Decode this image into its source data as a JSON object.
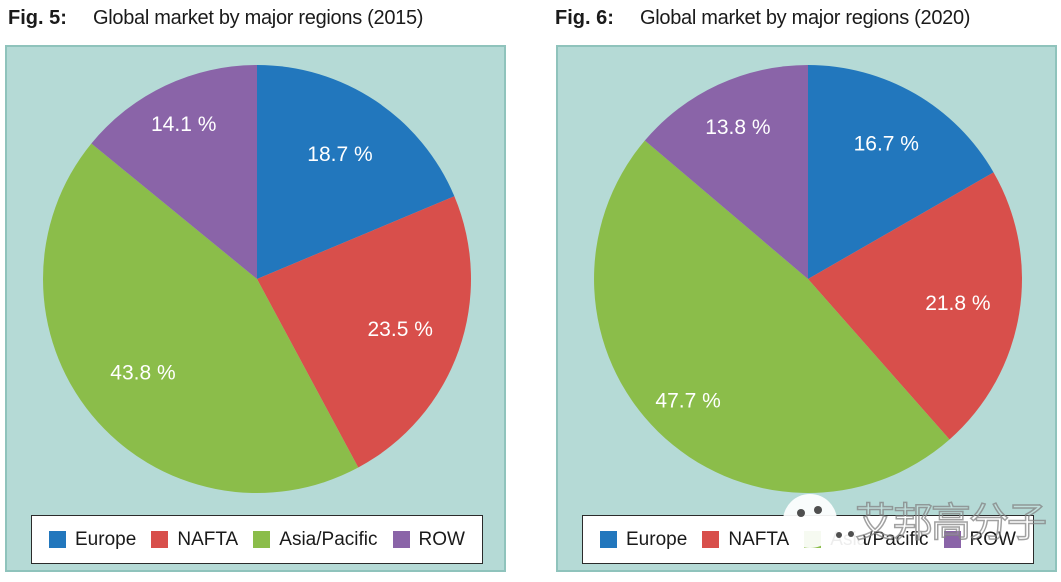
{
  "colors": {
    "panel_bg": "#b5dad6",
    "panel_border": "#8fc3bc",
    "legend_bg": "#ffffff",
    "legend_border": "#2b2b2b",
    "title_color": "#1a1a1a",
    "europe_blue": "#2277bd",
    "nafta_red": "#d84f4b",
    "asia_pacific_green": "#8bbd4a",
    "row_purple": "#8a64a8",
    "pie_label_white": "#ffffff"
  },
  "chart_data": [
    {
      "type": "pie",
      "fig_label": "Fig. 5:",
      "title": "Global market by major regions (2015)",
      "categories": [
        "Europe",
        "NAFTA",
        "Asia/Pacific",
        "ROW"
      ],
      "values": [
        18.7,
        23.5,
        43.8,
        14.1
      ],
      "unit": "%",
      "colors": [
        "#2277bd",
        "#d84f4b",
        "#8bbd4a",
        "#8a64a8"
      ],
      "start_angle_deg": 0,
      "direction": "clockwise",
      "label_format": "{value} %",
      "label_color": "#ffffff",
      "label_radius_factors": [
        0.7,
        0.71,
        0.69,
        0.8
      ],
      "legend_position": "bottom"
    },
    {
      "type": "pie",
      "fig_label": "Fig. 6:",
      "title": "Global market by major regions (2020)",
      "categories": [
        "Europe",
        "NAFTA",
        "Asia/Pacific",
        "ROW"
      ],
      "values": [
        16.7,
        21.8,
        47.7,
        13.8
      ],
      "unit": "%",
      "colors": [
        "#2277bd",
        "#d84f4b",
        "#8bbd4a",
        "#8a64a8"
      ],
      "start_angle_deg": 0,
      "direction": "clockwise",
      "label_format": "{value} %",
      "label_color": "#ffffff",
      "label_radius_factors": [
        0.73,
        0.71,
        0.8,
        0.78
      ],
      "legend_position": "bottom"
    }
  ],
  "watermark": {
    "icon": "wechat-icon",
    "text": "艾邦高分子"
  }
}
